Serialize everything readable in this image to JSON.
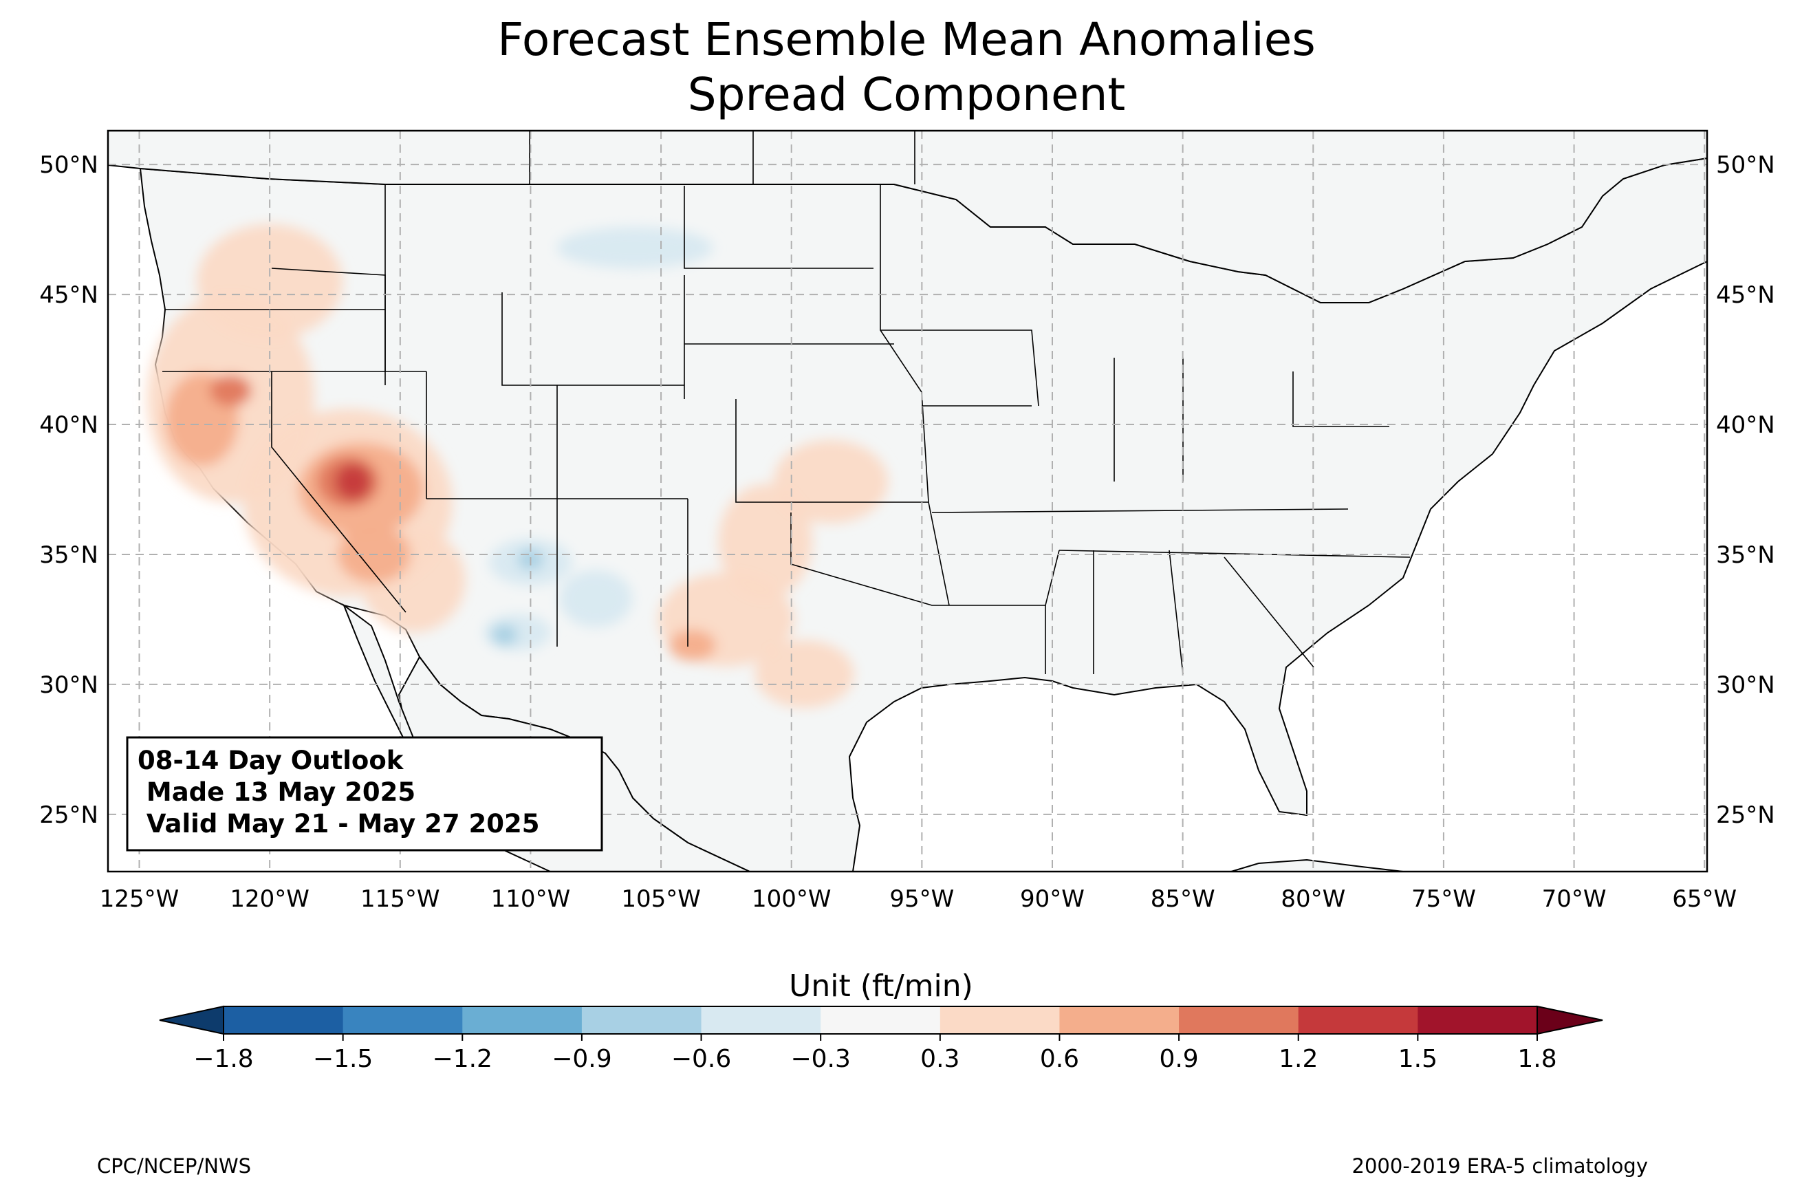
{
  "title": {
    "line1": "Forecast Ensemble Mean Anomalies",
    "line2": "Spread Component"
  },
  "map": {
    "projection": "PlateCarree",
    "lon_range": [
      -126.2,
      -64.9
    ],
    "lat_range": [
      22.8,
      51.3
    ],
    "gridlines": "dashed",
    "lon_ticks": [
      "125°W",
      "120°W",
      "115°W",
      "110°W",
      "105°W",
      "100°W",
      "95°W",
      "90°W",
      "85°W",
      "80°W",
      "75°W",
      "70°W",
      "65°W"
    ],
    "lon_values": [
      -125,
      -120,
      -115,
      -110,
      -105,
      -100,
      -95,
      -90,
      -85,
      -80,
      -75,
      -70,
      -65
    ],
    "lat_ticks": [
      "25°N",
      "30°N",
      "35°N",
      "40°N",
      "45°N",
      "50°N"
    ],
    "lat_values": [
      25,
      30,
      35,
      40,
      45,
      50
    ],
    "land_color": "#f4f6f6",
    "anomaly_regions": [
      {
        "level": 0.45,
        "lon": -121.5,
        "lat": 41.0,
        "rlon": 3.2,
        "rlat": 4.0
      },
      {
        "level": 0.45,
        "lon": -120.0,
        "lat": 45.5,
        "rlon": 2.8,
        "rlat": 2.2
      },
      {
        "level": 0.45,
        "lon": -117.0,
        "lat": 37.0,
        "rlon": 4.0,
        "rlat": 3.6
      },
      {
        "level": 0.45,
        "lon": -114.5,
        "lat": 34.0,
        "rlon": 2.0,
        "rlat": 2.0
      },
      {
        "level": 0.45,
        "lon": -102.5,
        "lat": 32.5,
        "rlon": 2.6,
        "rlat": 1.8
      },
      {
        "level": 0.45,
        "lon": -101.0,
        "lat": 35.5,
        "rlon": 1.8,
        "rlat": 2.2
      },
      {
        "level": 0.45,
        "lon": -98.5,
        "lat": 37.8,
        "rlon": 2.2,
        "rlat": 1.6
      },
      {
        "level": 0.45,
        "lon": -99.5,
        "lat": 30.4,
        "rlon": 1.9,
        "rlat": 1.3
      },
      {
        "level": 0.75,
        "lon": -122.6,
        "lat": 40.2,
        "rlon": 1.4,
        "rlat": 1.8
      },
      {
        "level": 0.75,
        "lon": -116.5,
        "lat": 37.5,
        "rlon": 2.4,
        "rlat": 1.8
      },
      {
        "level": 0.75,
        "lon": -116.0,
        "lat": 35.0,
        "rlon": 1.4,
        "rlat": 1.1
      },
      {
        "level": 0.75,
        "lon": -103.8,
        "lat": 31.5,
        "rlon": 0.9,
        "rlat": 0.6
      },
      {
        "level": 1.05,
        "lon": -117.0,
        "lat": 37.8,
        "rlon": 1.2,
        "rlat": 1.0
      },
      {
        "level": 1.05,
        "lon": -121.5,
        "lat": 41.3,
        "rlon": 0.8,
        "rlat": 0.6
      },
      {
        "level": 1.35,
        "lon": -116.8,
        "lat": 37.8,
        "rlon": 0.7,
        "rlat": 0.7
      },
      {
        "level": -0.45,
        "lon": -106.0,
        "lat": 46.8,
        "rlon": 3.0,
        "rlat": 0.8
      },
      {
        "level": -0.45,
        "lon": -110.0,
        "lat": 34.7,
        "rlon": 1.6,
        "rlat": 0.9
      },
      {
        "level": -0.45,
        "lon": -107.5,
        "lat": 33.3,
        "rlon": 1.4,
        "rlat": 1.1
      },
      {
        "level": -0.45,
        "lon": -110.5,
        "lat": 32.0,
        "rlon": 1.3,
        "rlat": 0.7
      },
      {
        "level": -0.75,
        "lon": -110.0,
        "lat": 34.8,
        "rlon": 0.5,
        "rlat": 0.4
      },
      {
        "level": -0.75,
        "lon": -111.0,
        "lat": 31.9,
        "rlon": 0.5,
        "rlat": 0.4
      }
    ]
  },
  "info_box": {
    "line1": "08-14 Day Outlook",
    "line2": " Made 13 May 2025",
    "line3": " Valid May 21 - May 27 2025"
  },
  "colorbar": {
    "label": "Unit (ft/min)",
    "ticks": [
      "−1.8",
      "−1.5",
      "−1.2",
      "−0.9",
      "−0.6",
      "−0.3",
      "0.3",
      "0.6",
      "0.9",
      "1.2",
      "1.5",
      "1.8"
    ],
    "colors": [
      "#1c5fa3",
      "#3984bf",
      "#6aaed3",
      "#a8d0e4",
      "#d8e9f1",
      "#f6f6f6",
      "#fbdac6",
      "#f4ae8c",
      "#e0785d",
      "#c5393b",
      "#a1142b"
    ],
    "under_color": "#0d3b6c",
    "over_color": "#6b0019"
  },
  "footer": {
    "left": "CPC/NCEP/NWS",
    "right": "2000-2019 ERA-5 climatology"
  }
}
